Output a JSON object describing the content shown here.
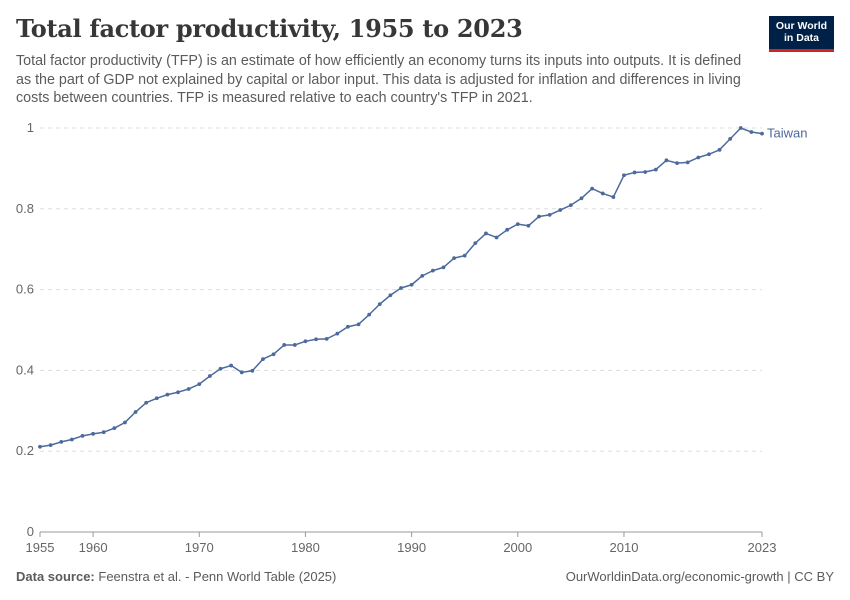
{
  "header": {
    "title": "Total factor productivity, 1955 to 2023",
    "subtitle": "Total factor productivity (TFP) is an estimate of how efficiently an economy turns its inputs into outputs. It is defined as the part of GDP not explained by capital or labor input. This data is adjusted for inflation and differences in living costs between countries. TFP is measured relative to each country's TFP in 2021."
  },
  "logo": {
    "line1": "Our World",
    "line2": "in Data",
    "bg_color": "#002147",
    "accent_color": "#ce261e"
  },
  "footer": {
    "source_label": "Data source:",
    "source_text": "Feenstra et al. - Penn World Table (2025)",
    "right_text": "OurWorldinData.org/economic-growth | CC BY"
  },
  "chart_data": {
    "type": "line",
    "title": "Total factor productivity, 1955 to 2023",
    "xlim": [
      1955,
      2023
    ],
    "ylim": [
      0,
      1
    ],
    "x_ticks": [
      1955,
      1960,
      1970,
      1980,
      1990,
      2000,
      2010,
      2023
    ],
    "y_ticks": [
      0,
      0.2,
      0.4,
      0.6,
      0.8,
      1
    ],
    "y_tick_labels": [
      "0",
      "0.2",
      "0.4",
      "0.6",
      "0.8",
      "1"
    ],
    "grid": true,
    "series": [
      {
        "name": "Taiwan",
        "color": "#4c6a9c",
        "x": [
          1955,
          1956,
          1957,
          1958,
          1959,
          1960,
          1961,
          1962,
          1963,
          1964,
          1965,
          1966,
          1967,
          1968,
          1969,
          1970,
          1971,
          1972,
          1973,
          1974,
          1975,
          1976,
          1977,
          1978,
          1979,
          1980,
          1981,
          1982,
          1983,
          1984,
          1985,
          1986,
          1987,
          1988,
          1989,
          1990,
          1991,
          1992,
          1993,
          1994,
          1995,
          1996,
          1997,
          1998,
          1999,
          2000,
          2001,
          2002,
          2003,
          2004,
          2005,
          2006,
          2007,
          2008,
          2009,
          2010,
          2011,
          2012,
          2013,
          2014,
          2015,
          2016,
          2017,
          2018,
          2019,
          2020,
          2021,
          2022,
          2023
        ],
        "y": [
          0.211,
          0.215,
          0.223,
          0.229,
          0.238,
          0.243,
          0.247,
          0.257,
          0.271,
          0.297,
          0.32,
          0.331,
          0.34,
          0.346,
          0.354,
          0.366,
          0.386,
          0.404,
          0.412,
          0.395,
          0.399,
          0.428,
          0.44,
          0.463,
          0.463,
          0.472,
          0.477,
          0.478,
          0.491,
          0.508,
          0.514,
          0.538,
          0.564,
          0.586,
          0.604,
          0.612,
          0.634,
          0.647,
          0.655,
          0.678,
          0.684,
          0.715,
          0.739,
          0.729,
          0.748,
          0.762,
          0.758,
          0.781,
          0.785,
          0.797,
          0.809,
          0.826,
          0.85,
          0.838,
          0.829,
          0.883,
          0.89,
          0.891,
          0.897,
          0.92,
          0.913,
          0.915,
          0.927,
          0.935,
          0.946,
          0.973,
          1.0,
          0.99,
          0.986
        ]
      }
    ]
  }
}
